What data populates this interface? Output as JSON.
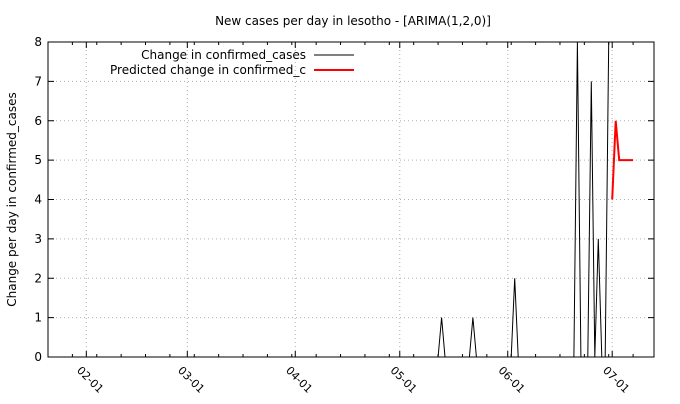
{
  "chart_data": {
    "type": "line",
    "title": "New cases per day in lesotho -  [ARIMA(1,2,0)]",
    "xlabel": "",
    "ylabel": "Change per day in confirmed_cases",
    "x_type": "date",
    "xlim": [
      "2020-01-21",
      "2020-07-13"
    ],
    "ylim": [
      0,
      8
    ],
    "x_ticks": [
      {
        "date": "2020-02-01",
        "label": "02-01"
      },
      {
        "date": "2020-03-01",
        "label": "03-01"
      },
      {
        "date": "2020-04-01",
        "label": "04-01"
      },
      {
        "date": "2020-05-01",
        "label": "05-01"
      },
      {
        "date": "2020-06-01",
        "label": "06-01"
      },
      {
        "date": "2020-07-01",
        "label": "07-01"
      }
    ],
    "y_ticks": [
      0,
      1,
      2,
      3,
      4,
      5,
      6,
      7,
      8
    ],
    "grid": true,
    "legend_position": "top-left",
    "series": [
      {
        "name": "Change in confirmed_cases",
        "color": "#000000",
        "points": [
          {
            "x": "2020-01-21",
            "y": 0
          },
          {
            "x": "2020-05-12",
            "y": 0
          },
          {
            "x": "2020-05-13",
            "y": 1
          },
          {
            "x": "2020-05-14",
            "y": 0
          },
          {
            "x": "2020-05-21",
            "y": 0
          },
          {
            "x": "2020-05-22",
            "y": 1
          },
          {
            "x": "2020-05-23",
            "y": 0
          },
          {
            "x": "2020-06-02",
            "y": 0
          },
          {
            "x": "2020-06-03",
            "y": 2
          },
          {
            "x": "2020-06-04",
            "y": 0
          },
          {
            "x": "2020-06-20",
            "y": 0
          },
          {
            "x": "2020-06-21",
            "y": 8
          },
          {
            "x": "2020-06-22",
            "y": 0
          },
          {
            "x": "2020-06-24",
            "y": 0
          },
          {
            "x": "2020-06-25",
            "y": 7
          },
          {
            "x": "2020-06-26",
            "y": 0
          },
          {
            "x": "2020-06-27",
            "y": 3
          },
          {
            "x": "2020-06-28",
            "y": 0
          },
          {
            "x": "2020-06-29",
            "y": 0
          },
          {
            "x": "2020-06-30",
            "y": 8
          }
        ]
      },
      {
        "name": "Predicted change in confirmed_c",
        "color": "#ff0000",
        "points": [
          {
            "x": "2020-07-01",
            "y": 4
          },
          {
            "x": "2020-07-02",
            "y": 6
          },
          {
            "x": "2020-07-03",
            "y": 5
          },
          {
            "x": "2020-07-04",
            "y": 5
          },
          {
            "x": "2020-07-05",
            "y": 5
          },
          {
            "x": "2020-07-06",
            "y": 5
          },
          {
            "x": "2020-07-07",
            "y": 5
          }
        ]
      }
    ]
  }
}
